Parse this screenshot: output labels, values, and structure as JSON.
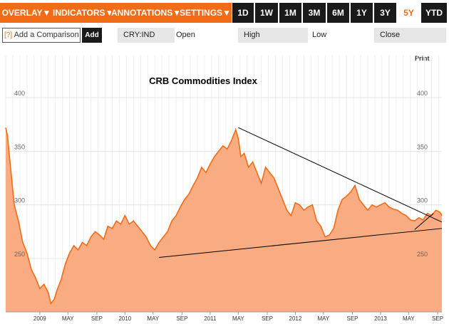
{
  "toolbar": {
    "menus": [
      "OVERLAY",
      "INDICATORS",
      "ANNOTATIONS",
      "SETTINGS"
    ],
    "arrow": "▼",
    "ranges": [
      "1D",
      "1W",
      "1M",
      "3M",
      "6M",
      "1Y",
      "3Y",
      "5Y",
      "YTD"
    ],
    "active_range": "5Y"
  },
  "comparison": {
    "help_icon": "[?]",
    "placeholder": "Add a Comparison",
    "add_label": "Add",
    "symbol": "CRY:IND",
    "open_label": "Open",
    "high_label": "High",
    "low_label": "Low",
    "close_label": "Close"
  },
  "print_label": "Print",
  "colors": {
    "accent": "#f26c17",
    "line": "#f26c17",
    "fill": "#f9ab82",
    "dark": "#1a1a1a"
  },
  "chart_data": {
    "type": "area",
    "title": "CRB Commodities Index",
    "ylim": [
      200,
      400
    ],
    "yticks": [
      250,
      300,
      350,
      400
    ],
    "x_start": 2008.6,
    "x_end": 2013.72,
    "xtick_labels": [
      {
        "label": "2009",
        "x": 2009.0
      },
      {
        "label": "MAY",
        "x": 2009.33
      },
      {
        "label": "SEP",
        "x": 2009.67
      },
      {
        "label": "2010",
        "x": 2010.0
      },
      {
        "label": "MAY",
        "x": 2010.33
      },
      {
        "label": "SEP",
        "x": 2010.67
      },
      {
        "label": "2011",
        "x": 2011.0
      },
      {
        "label": "MAY",
        "x": 2011.33
      },
      {
        "label": "SEP",
        "x": 2011.67
      },
      {
        "label": "2012",
        "x": 2012.0
      },
      {
        "label": "MAY",
        "x": 2012.33
      },
      {
        "label": "SEP",
        "x": 2012.67
      },
      {
        "label": "2013",
        "x": 2013.0
      },
      {
        "label": "MAY",
        "x": 2013.33
      },
      {
        "label": "SEP",
        "x": 2013.67
      }
    ],
    "series": [
      {
        "name": "CRY:IND",
        "x": [
          2008.6,
          2008.62,
          2008.65,
          2008.7,
          2008.75,
          2008.8,
          2008.85,
          2008.9,
          2008.95,
          2009.0,
          2009.05,
          2009.1,
          2009.13,
          2009.17,
          2009.2,
          2009.25,
          2009.3,
          2009.35,
          2009.4,
          2009.45,
          2009.5,
          2009.55,
          2009.6,
          2009.65,
          2009.7,
          2009.75,
          2009.8,
          2009.85,
          2009.9,
          2009.95,
          2010.0,
          2010.05,
          2010.1,
          2010.15,
          2010.2,
          2010.25,
          2010.3,
          2010.35,
          2010.4,
          2010.45,
          2010.5,
          2010.55,
          2010.6,
          2010.65,
          2010.7,
          2010.75,
          2010.8,
          2010.85,
          2010.9,
          2010.95,
          2011.0,
          2011.05,
          2011.1,
          2011.15,
          2011.2,
          2011.25,
          2011.3,
          2011.33,
          2011.36,
          2011.4,
          2011.45,
          2011.5,
          2011.55,
          2011.6,
          2011.65,
          2011.7,
          2011.75,
          2011.8,
          2011.85,
          2011.9,
          2011.95,
          2012.0,
          2012.05,
          2012.1,
          2012.15,
          2012.2,
          2012.25,
          2012.3,
          2012.35,
          2012.4,
          2012.45,
          2012.5,
          2012.55,
          2012.6,
          2012.65,
          2012.7,
          2012.75,
          2012.8,
          2012.85,
          2012.9,
          2012.95,
          2013.0,
          2013.05,
          2013.1,
          2013.15,
          2013.2,
          2013.25,
          2013.3,
          2013.35,
          2013.4,
          2013.45,
          2013.5,
          2013.55,
          2013.6,
          2013.65,
          2013.7,
          2013.72
        ],
        "values": [
          372,
          365,
          340,
          300,
          285,
          265,
          255,
          240,
          232,
          222,
          226,
          218,
          208,
          212,
          220,
          230,
          245,
          255,
          262,
          258,
          265,
          262,
          270,
          275,
          272,
          268,
          280,
          278,
          285,
          282,
          290,
          282,
          285,
          280,
          275,
          270,
          262,
          258,
          265,
          270,
          275,
          285,
          290,
          298,
          305,
          310,
          318,
          325,
          335,
          330,
          338,
          345,
          350,
          355,
          352,
          360,
          370,
          362,
          345,
          348,
          335,
          340,
          330,
          320,
          335,
          330,
          325,
          315,
          305,
          295,
          290,
          302,
          300,
          295,
          298,
          300,
          285,
          280,
          270,
          272,
          278,
          295,
          305,
          308,
          312,
          318,
          305,
          300,
          295,
          300,
          298,
          300,
          302,
          298,
          296,
          295,
          292,
          290,
          286,
          285,
          288,
          286,
          292,
          290,
          295,
          293,
          290
        ]
      }
    ],
    "trendlines": [
      {
        "name": "resistance",
        "points": [
          [
            2011.33,
            372
          ],
          [
            2013.72,
            284
          ]
        ]
      },
      {
        "name": "support",
        "points": [
          [
            2010.4,
            251
          ],
          [
            2013.72,
            278
          ]
        ]
      },
      {
        "name": "short-resistance",
        "points": [
          [
            2013.4,
            277
          ],
          [
            2013.62,
            292
          ]
        ]
      }
    ]
  }
}
